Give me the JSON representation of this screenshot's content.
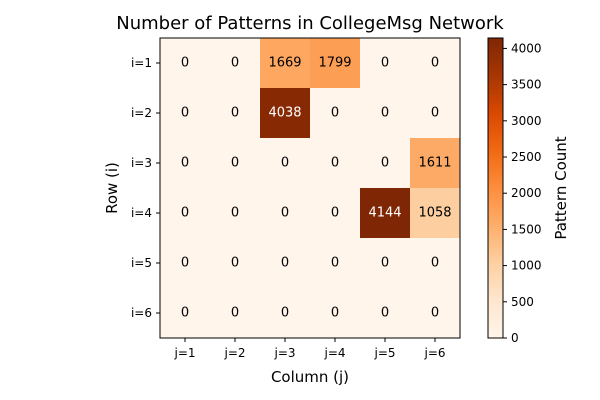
{
  "chart_data": {
    "type": "heatmap",
    "title": "Number of Patterns in CollegeMsg Network",
    "xlabel": "Column (j)",
    "ylabel": "Row (i)",
    "x_labels": [
      "j=1",
      "j=2",
      "j=3",
      "j=4",
      "j=5",
      "j=6"
    ],
    "y_labels": [
      "i=1",
      "i=2",
      "i=3",
      "i=4",
      "i=5",
      "i=6"
    ],
    "values": [
      [
        0,
        0,
        1669,
        1799,
        0,
        0
      ],
      [
        0,
        0,
        4038,
        0,
        0,
        0
      ],
      [
        0,
        0,
        0,
        0,
        0,
        1611
      ],
      [
        0,
        0,
        0,
        0,
        4144,
        1058
      ],
      [
        0,
        0,
        0,
        0,
        0,
        0
      ],
      [
        0,
        0,
        0,
        0,
        0,
        0
      ]
    ],
    "colorbar": {
      "label": "Pattern Count",
      "ticks": [
        0,
        500,
        1000,
        1500,
        2000,
        2500,
        3000,
        3500,
        4000
      ],
      "range": [
        0,
        4144
      ],
      "colormap": [
        "#fff5eb",
        "#fee6ce",
        "#fdd0a2",
        "#fdae6b",
        "#fd8d3c",
        "#f16913",
        "#d94801",
        "#a63603",
        "#7f2704"
      ]
    }
  }
}
